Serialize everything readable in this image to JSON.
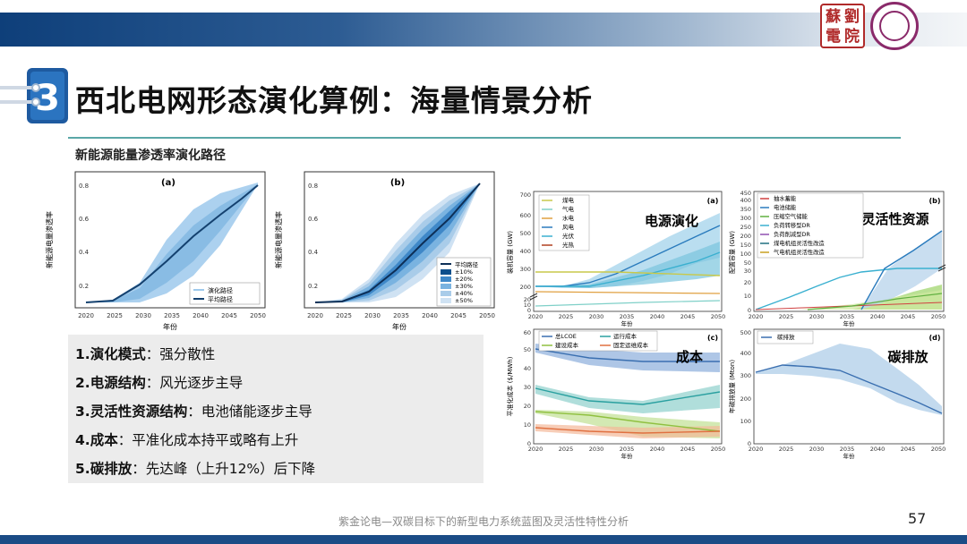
{
  "logo_chars": [
    "蘇",
    "劉",
    "電",
    "院"
  ],
  "title": "西北电网形态演化算例：海量情景分析",
  "subtitle": "新能源能量渗透率演化路径",
  "panel_a": {
    "tag": "(a)",
    "ylabel": "新能源电量渗透率",
    "xlabel": "年份",
    "xticks": [
      "2020",
      "2025",
      "2030",
      "2035",
      "2040",
      "2045",
      "2050"
    ],
    "yticks": [
      "0.2",
      "0.4",
      "0.6",
      "0.8"
    ],
    "legend": [
      "演化路径",
      "平均路径"
    ]
  },
  "panel_b": {
    "tag": "(b)",
    "ylabel": "新能源电量渗透率",
    "xlabel": "年份",
    "xticks": [
      "2020",
      "2025",
      "2030",
      "2035",
      "2040",
      "2045",
      "2050"
    ],
    "yticks": [
      "0.2",
      "0.4",
      "0.6",
      "0.8"
    ],
    "legend": [
      "平均路径",
      "±10%",
      "±20%",
      "±30%",
      "±40%",
      "±50%"
    ]
  },
  "chart_c1": {
    "tag": "(a)",
    "label": "电源演化",
    "ylabel": "装机容量 (GW)",
    "xlabel": "年份",
    "yticks_top": [
      "200",
      "300",
      "400",
      "500",
      "600",
      "700"
    ],
    "yticks_bottom": [
      "0",
      "10",
      "20"
    ],
    "xticks": [
      "2020",
      "2025",
      "2030",
      "2035",
      "2040",
      "2045",
      "2050"
    ],
    "legend": [
      "煤电",
      "气电",
      "水电",
      "风电",
      "光伏",
      "光热"
    ],
    "legend_colors": [
      "#c9c94a",
      "#7fd0c8",
      "#e0a040",
      "#2a7bbd",
      "#3ab0d0",
      "#b04020"
    ]
  },
  "chart_c2": {
    "tag": "(b)",
    "label": "灵活性资源",
    "ylabel": "配置容量 (GW)",
    "xlabel": "年份",
    "yticks_top": [
      "50",
      "100",
      "150",
      "200",
      "250",
      "300",
      "350",
      "400",
      "450"
    ],
    "yticks_bottom": [
      "0",
      "10",
      "20",
      "30"
    ],
    "xticks": [
      "2020",
      "2025",
      "2030",
      "2035",
      "2040",
      "2045",
      "2050"
    ],
    "legend": [
      "抽水蓄能",
      "电池储能",
      "压缩空气储能",
      "负荷转移型DR",
      "负荷削减型DR",
      "煤电机组灵活性改造",
      "气电机组灵活性改造"
    ],
    "legend_colors": [
      "#d04040",
      "#2a7bbd",
      "#60b040",
      "#3ab0d0",
      "#9050b0",
      "#207080",
      "#c9a020"
    ]
  },
  "chart_c3": {
    "tag": "(c)",
    "label": "成本",
    "ylabel": "平准化成本 ($/MWh)",
    "xlabel": "年份",
    "yticks": [
      "0",
      "10",
      "20",
      "30",
      "40",
      "50",
      "60"
    ],
    "xticks": [
      "2020",
      "2025",
      "2030",
      "2035",
      "2040",
      "2045",
      "2050"
    ],
    "legend": [
      "总LCOE",
      "运行成本",
      "建设成本",
      "固定运维成本"
    ],
    "legend_colors": [
      "#3a6fb0",
      "#2aa0a0",
      "#90c040",
      "#e07040"
    ]
  },
  "chart_c4": {
    "tag": "(d)",
    "label": "碳排放",
    "ylabel": "年碳排放量 (Mton)",
    "xlabel": "年份",
    "yticks": [
      "0",
      "100",
      "200",
      "300",
      "400",
      "500"
    ],
    "xticks": [
      "2020",
      "2025",
      "2030",
      "2035",
      "2040",
      "2045",
      "2050"
    ],
    "legend": [
      "碳排放"
    ],
    "legend_colors": [
      "#3a6fb0"
    ]
  },
  "list": [
    {
      "num": "1.",
      "head": "演化模式",
      "text": "：强分散性"
    },
    {
      "num": "2.",
      "head": "电源结构",
      "text": "：风光逐步主导"
    },
    {
      "num": "3.",
      "head": "灵活性资源结构",
      "text": "：电池储能逐步主导"
    },
    {
      "num": "4.",
      "head": "成本",
      "text": "：平准化成本持平或略有上升"
    },
    {
      "num": "5.",
      "head": "碳排放",
      "text": "：先达峰（上升12%）后下降"
    }
  ],
  "footer": "紫金论电—双碳目标下的新型电力系统蓝图及灵活性特性分析",
  "page_number": "57",
  "colors": {
    "accent": "#1b4c86",
    "rule": "#5aa7a7"
  }
}
